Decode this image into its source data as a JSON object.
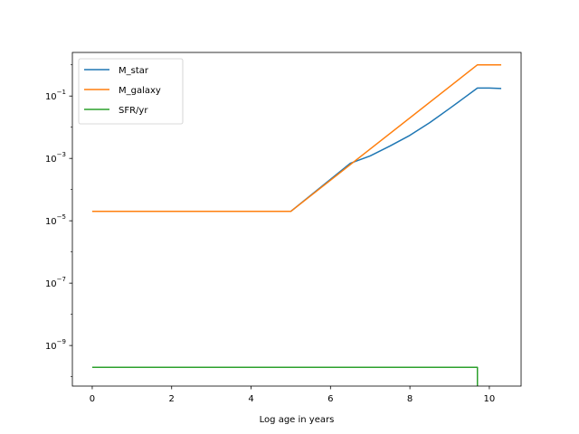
{
  "chart_data": {
    "type": "line",
    "title": "",
    "xlabel": "Log age in years",
    "ylabel": "",
    "xlim": [
      -0.5,
      10.8
    ],
    "ylim": [
      5e-11,
      2.5
    ],
    "yscale": "log",
    "grid": false,
    "legend_position": "top-left",
    "x_ticks": [
      {
        "value": 0,
        "label": "0"
      },
      {
        "value": 2,
        "label": "2"
      },
      {
        "value": 4,
        "label": "4"
      },
      {
        "value": 6,
        "label": "6"
      },
      {
        "value": 8,
        "label": "8"
      },
      {
        "value": 10,
        "label": "10"
      }
    ],
    "y_ticks": [
      {
        "value": 1e-09,
        "base": "10",
        "exp": "−9"
      },
      {
        "value": 1e-07,
        "base": "10",
        "exp": "−7"
      },
      {
        "value": 1e-05,
        "base": "10",
        "exp": "−5"
      },
      {
        "value": 0.001,
        "base": "10",
        "exp": "−3"
      },
      {
        "value": 0.1,
        "base": "10",
        "exp": "−1"
      }
    ],
    "series": [
      {
        "name": "M_star",
        "color": "#1f77b4",
        "x": [
          0,
          5,
          6.5,
          7,
          7.5,
          8,
          8.5,
          9,
          9.7,
          10.0,
          10.3
        ],
        "y": [
          2e-05,
          2e-05,
          0.0007,
          0.0012,
          0.0025,
          0.0055,
          0.014,
          0.04,
          0.18,
          0.18,
          0.175
        ]
      },
      {
        "name": "M_galaxy",
        "color": "#ff7f0e",
        "x": [
          0,
          5,
          9.7,
          10.3
        ],
        "y": [
          2e-05,
          2e-05,
          1.0,
          1.0
        ]
      },
      {
        "name": "SFR/yr",
        "color": "#2ca02c",
        "x": [
          0,
          9.7,
          9.7
        ],
        "y": [
          2e-10,
          2e-10,
          5e-11
        ]
      }
    ]
  }
}
